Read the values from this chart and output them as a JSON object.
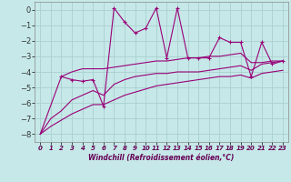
{
  "xlabel": "Windchill (Refroidissement éolien,°C)",
  "bg_color": "#c6e8e8",
  "grid_color": "#aad0d0",
  "line_color": "#990077",
  "xlim": [
    -0.5,
    23.5
  ],
  "ylim": [
    -8.5,
    0.5
  ],
  "xticks": [
    0,
    1,
    2,
    3,
    4,
    5,
    6,
    7,
    8,
    9,
    10,
    11,
    12,
    13,
    14,
    15,
    16,
    17,
    18,
    19,
    20,
    21,
    22,
    23
  ],
  "yticks": [
    0,
    -1,
    -2,
    -3,
    -4,
    -5,
    -6,
    -7,
    -8
  ],
  "series_x": [
    2,
    3,
    4,
    5,
    6,
    7,
    8,
    9,
    10,
    11,
    12,
    13,
    14,
    15,
    16,
    17,
    18,
    19,
    20,
    21,
    22,
    23
  ],
  "series1_y": [
    -4.3,
    -4.5,
    -4.6,
    -4.5,
    -6.2,
    0.1,
    -0.8,
    -1.5,
    -1.2,
    0.1,
    -3.1,
    0.1,
    -3.1,
    -3.1,
    -3.1,
    -1.8,
    -2.1,
    -2.1,
    -4.3,
    -2.1,
    -3.5,
    -3.3
  ],
  "series2_x": [
    0,
    2,
    3,
    4,
    5,
    6,
    7,
    8,
    9,
    10,
    11,
    12,
    13,
    14,
    15,
    16,
    17,
    18,
    19,
    20,
    21,
    22,
    23
  ],
  "series2_y": [
    -8.0,
    -4.3,
    -4.0,
    -3.8,
    -3.8,
    -3.8,
    -3.7,
    -3.6,
    -3.5,
    -3.4,
    -3.3,
    -3.3,
    -3.2,
    -3.1,
    -3.1,
    -3.0,
    -3.0,
    -2.9,
    -2.8,
    -3.4,
    -3.4,
    -3.3,
    -3.3
  ],
  "series3_x": [
    0,
    1,
    2,
    3,
    4,
    5,
    6,
    7,
    8,
    9,
    10,
    11,
    12,
    13,
    14,
    15,
    16,
    17,
    18,
    19,
    20,
    21,
    22,
    23
  ],
  "series3_y": [
    -8.0,
    -7.0,
    -6.5,
    -5.8,
    -5.5,
    -5.2,
    -5.5,
    -4.8,
    -4.5,
    -4.3,
    -4.2,
    -4.1,
    -4.1,
    -4.0,
    -4.0,
    -4.0,
    -3.9,
    -3.8,
    -3.7,
    -3.6,
    -3.9,
    -3.5,
    -3.4,
    -3.3
  ],
  "series4_x": [
    0,
    1,
    2,
    3,
    4,
    5,
    6,
    7,
    8,
    9,
    10,
    11,
    12,
    13,
    14,
    15,
    16,
    17,
    18,
    19,
    20,
    21,
    22,
    23
  ],
  "series4_y": [
    -8.0,
    -7.5,
    -7.1,
    -6.7,
    -6.4,
    -6.1,
    -6.1,
    -5.8,
    -5.5,
    -5.3,
    -5.1,
    -4.9,
    -4.8,
    -4.7,
    -4.6,
    -4.5,
    -4.4,
    -4.3,
    -4.3,
    -4.2,
    -4.4,
    -4.1,
    -4.0,
    -3.9
  ]
}
